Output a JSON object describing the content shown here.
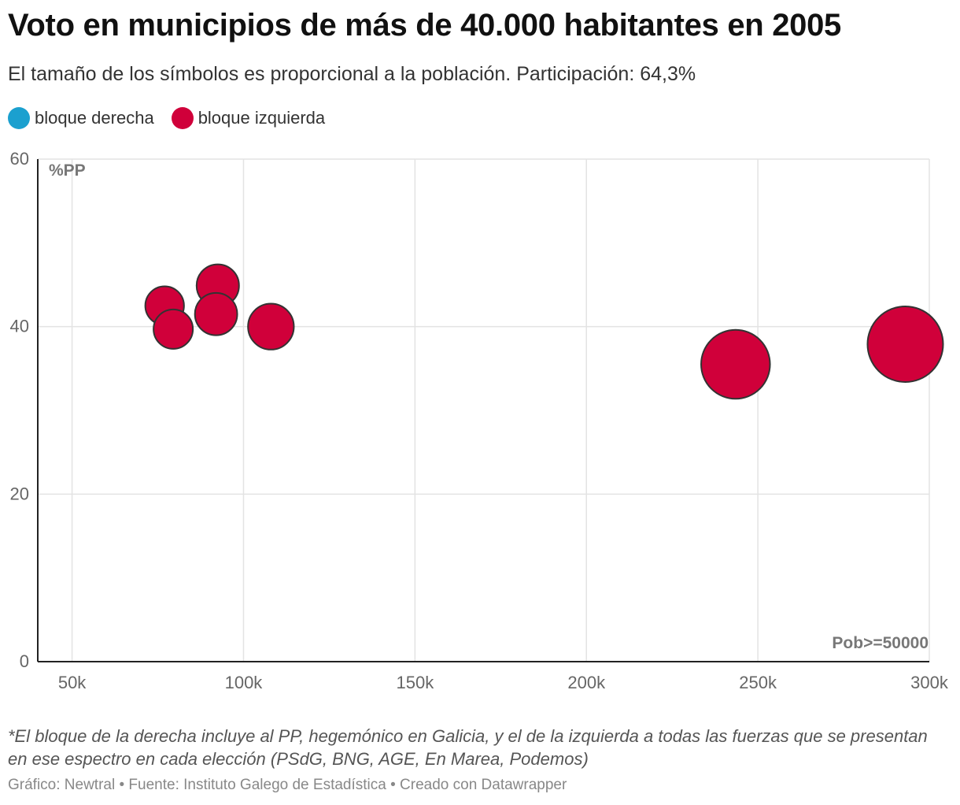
{
  "title": "Voto en municipios de más de 40.000 habitantes en 2005",
  "subtitle": "El tamaño de los símbolos es proporcional a la población. Participación: 64,3%",
  "legend": [
    {
      "label": "bloque derecha",
      "color": "#1ba0cf"
    },
    {
      "label": "bloque izquierda",
      "color": "#d0003a"
    }
  ],
  "chart_data": {
    "type": "scatter",
    "ylabel": "%PP",
    "xlabel": "Pob>=50000",
    "xlim": [
      40000,
      300000
    ],
    "ylim": [
      0,
      60
    ],
    "xticks": [
      50000,
      100000,
      150000,
      200000,
      250000,
      300000
    ],
    "xtick_labels": [
      "50k",
      "100k",
      "150k",
      "200k",
      "250k",
      "300k"
    ],
    "yticks": [
      0,
      20,
      40,
      60
    ],
    "ytick_labels": [
      "0",
      "20",
      "40",
      "60"
    ],
    "grid": true,
    "size_encoding": "population",
    "series": [
      {
        "name": "bloque izquierda",
        "color": "#d0003a",
        "points": [
          {
            "x": 77000,
            "y": 42.5,
            "size": 77000
          },
          {
            "x": 79500,
            "y": 39.7,
            "size": 79500
          },
          {
            "x": 92500,
            "y": 44.9,
            "size": 92500
          },
          {
            "x": 92000,
            "y": 41.5,
            "size": 92000
          },
          {
            "x": 108000,
            "y": 40.0,
            "size": 108000
          },
          {
            "x": 243500,
            "y": 35.5,
            "size": 243500
          },
          {
            "x": 293000,
            "y": 37.9,
            "size": 293000
          }
        ]
      }
    ]
  },
  "note": "*El bloque de la derecha incluye al PP, hegemónico en Galicia, y el de la izquierda a todas las fuerzas que se presentan en ese espectro en cada elección (PSdG, BNG, AGE, En Marea, Podemos)",
  "footer": "Gráfico: Newtral • Fuente: Instituto Galego de Estadística • Creado con Datawrapper"
}
